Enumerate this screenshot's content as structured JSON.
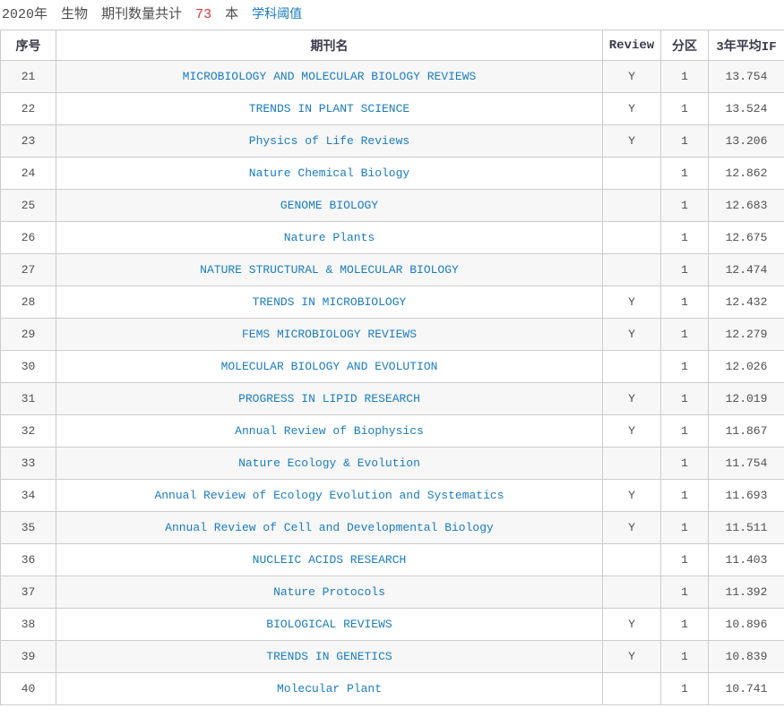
{
  "header": {
    "year": "2020年",
    "subject": "生物",
    "count_label": "期刊数量共计",
    "count": "73",
    "unit": "本",
    "threshold_link": "学科阈值"
  },
  "colors": {
    "link_blue": "#1a7cc1",
    "count_red": "#e53333",
    "row_alt_bg": "#f7f7f7",
    "border": "#cccccc",
    "body_text": "#4f4f4f",
    "header_text": "#3b3b4c"
  },
  "table": {
    "columns": [
      "序号",
      "期刊名",
      "Review",
      "分区",
      "3年平均IF"
    ],
    "rows": [
      {
        "no": "21",
        "name": "MICROBIOLOGY AND MOLECULAR BIOLOGY REVIEWS",
        "review": "Y",
        "zone": "1",
        "if3": "13.754"
      },
      {
        "no": "22",
        "name": "TRENDS IN PLANT SCIENCE",
        "review": "Y",
        "zone": "1",
        "if3": "13.524"
      },
      {
        "no": "23",
        "name": "Physics of Life Reviews",
        "review": "Y",
        "zone": "1",
        "if3": "13.206"
      },
      {
        "no": "24",
        "name": "Nature Chemical Biology",
        "review": "",
        "zone": "1",
        "if3": "12.862"
      },
      {
        "no": "25",
        "name": "GENOME BIOLOGY",
        "review": "",
        "zone": "1",
        "if3": "12.683"
      },
      {
        "no": "26",
        "name": "Nature Plants",
        "review": "",
        "zone": "1",
        "if3": "12.675"
      },
      {
        "no": "27",
        "name": "NATURE STRUCTURAL & MOLECULAR BIOLOGY",
        "review": "",
        "zone": "1",
        "if3": "12.474"
      },
      {
        "no": "28",
        "name": "TRENDS IN MICROBIOLOGY",
        "review": "Y",
        "zone": "1",
        "if3": "12.432"
      },
      {
        "no": "29",
        "name": "FEMS MICROBIOLOGY REVIEWS",
        "review": "Y",
        "zone": "1",
        "if3": "12.279"
      },
      {
        "no": "30",
        "name": "MOLECULAR BIOLOGY AND EVOLUTION",
        "review": "",
        "zone": "1",
        "if3": "12.026"
      },
      {
        "no": "31",
        "name": "PROGRESS IN LIPID RESEARCH",
        "review": "Y",
        "zone": "1",
        "if3": "12.019"
      },
      {
        "no": "32",
        "name": "Annual Review of Biophysics",
        "review": "Y",
        "zone": "1",
        "if3": "11.867"
      },
      {
        "no": "33",
        "name": "Nature Ecology & Evolution",
        "review": "",
        "zone": "1",
        "if3": "11.754"
      },
      {
        "no": "34",
        "name": "Annual Review of Ecology Evolution and Systematics",
        "review": "Y",
        "zone": "1",
        "if3": "11.693"
      },
      {
        "no": "35",
        "name": "Annual Review of Cell and Developmental Biology",
        "review": "Y",
        "zone": "1",
        "if3": "11.511"
      },
      {
        "no": "36",
        "name": "NUCLEIC ACIDS RESEARCH",
        "review": "",
        "zone": "1",
        "if3": "11.403"
      },
      {
        "no": "37",
        "name": "Nature Protocols",
        "review": "",
        "zone": "1",
        "if3": "11.392"
      },
      {
        "no": "38",
        "name": "BIOLOGICAL REVIEWS",
        "review": "Y",
        "zone": "1",
        "if3": "10.896"
      },
      {
        "no": "39",
        "name": "TRENDS IN GENETICS",
        "review": "Y",
        "zone": "1",
        "if3": "10.839"
      },
      {
        "no": "40",
        "name": "Molecular Plant",
        "review": "",
        "zone": "1",
        "if3": "10.741"
      }
    ]
  }
}
